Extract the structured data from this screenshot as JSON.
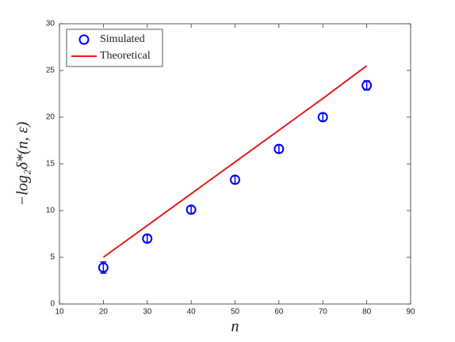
{
  "chart_data": {
    "type": "errorbar",
    "xlabel": "n",
    "ylabel": "−log₂δ*(n, ε)",
    "xlim": [
      10,
      90
    ],
    "xticks": [
      10,
      20,
      30,
      40,
      50,
      60,
      70,
      80,
      90
    ],
    "ylim": [
      0,
      30
    ],
    "yticks": [
      0,
      5,
      10,
      15,
      20,
      25,
      30
    ],
    "grid": false,
    "legend": "upper-left",
    "series": [
      {
        "name": "Simulated",
        "type": "errorbar",
        "color": "#0000ff",
        "x": [
          20,
          30,
          40,
          50,
          60,
          70,
          80
        ],
        "values": [
          3.9,
          7.0,
          10.1,
          13.3,
          16.6,
          20.0,
          23.4
        ],
        "errors": [
          0.6,
          0.4,
          0.4,
          0.4,
          0.4,
          0.4,
          0.5
        ]
      },
      {
        "name": "Theoretical",
        "type": "line",
        "color": "#e41a1c",
        "x": [
          20,
          30,
          40,
          50,
          60,
          70,
          80
        ],
        "values": [
          5.0,
          8.4,
          11.8,
          15.2,
          18.6,
          22.0,
          25.5
        ]
      }
    ]
  }
}
